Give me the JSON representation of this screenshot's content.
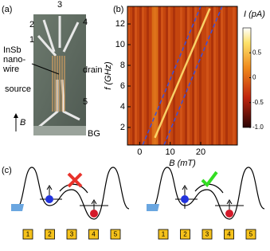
{
  "panel_a": {
    "label": "(a)",
    "lead_labels": [
      "3",
      "2",
      "1",
      "4",
      "5"
    ],
    "material": [
      "InSb",
      "nano-",
      "wire"
    ],
    "drain": "drain",
    "source": "source",
    "gate": "BG",
    "field": "B"
  },
  "chart_data": {
    "type": "heatmap",
    "panel_label": "(b)",
    "xlabel": "B (mT)",
    "ylabel": "f (GHz)",
    "xlim": [
      -4,
      32
    ],
    "ylim": [
      0.3,
      13.7
    ],
    "xticks": [
      0,
      10,
      20
    ],
    "yticks": [
      2,
      4,
      6,
      8,
      10,
      12
    ],
    "colorbar_label": "I (pA)",
    "colorbar_lim": [
      -1.0,
      1.0
    ],
    "colorbar_ticks": [
      0.5,
      0,
      -0.5,
      {
        "value": -1,
        "label": "-1.0"
      }
    ]
  },
  "panel_c": {
    "label": "(c)",
    "left_gates": [
      "1",
      "2",
      "3",
      "4",
      "5"
    ],
    "right_gates": [
      "1",
      "2",
      "3",
      "4",
      "5"
    ]
  }
}
